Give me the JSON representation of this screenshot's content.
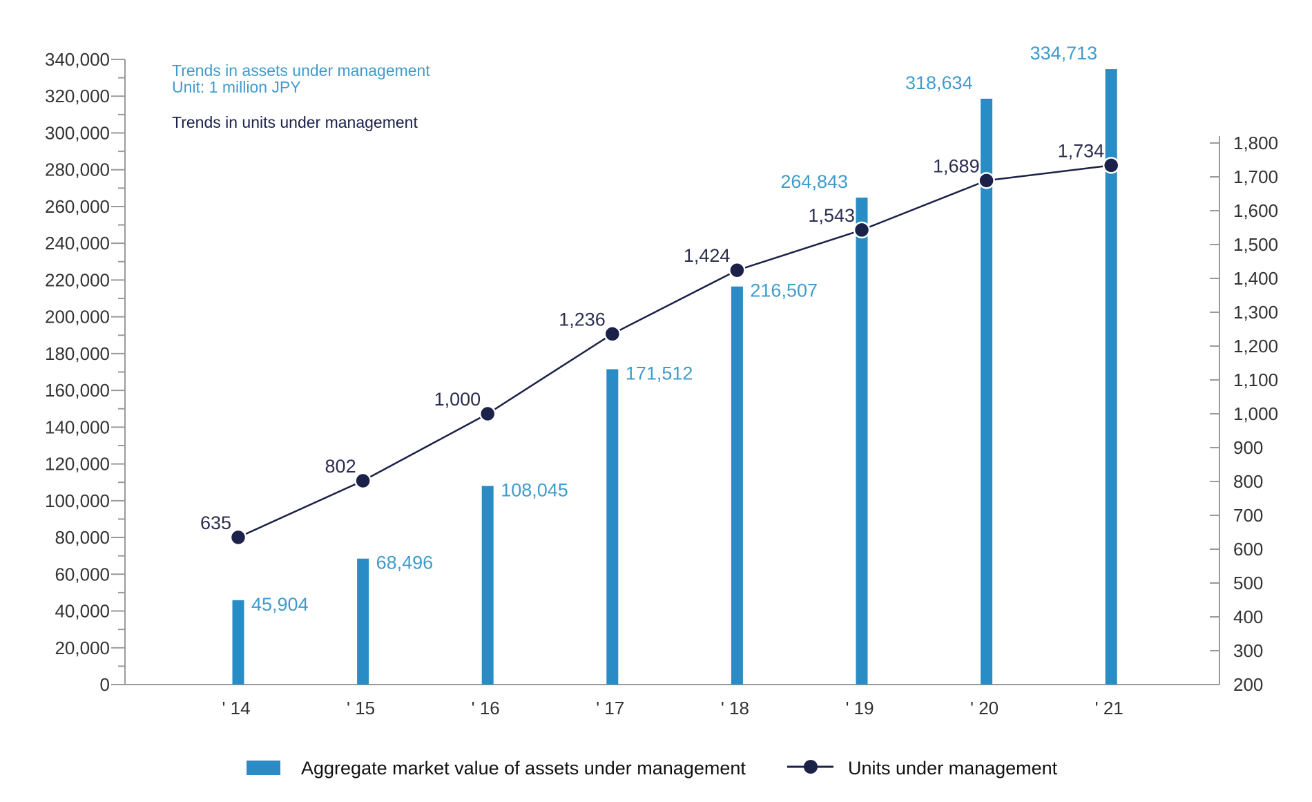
{
  "colors": {
    "bar": "#2a8cc4",
    "line": "#1b2148",
    "axis": "#9a9a9a",
    "bar_label": "#3f9bcc",
    "line_label": "#2b2d4e"
  },
  "notes": {
    "assets_title": "Trends in assets under management",
    "assets_unit": "Unit: 1 million JPY",
    "units_title": "Trends in units under management"
  },
  "chart_data": {
    "type": "bar",
    "categories": [
      "' 14",
      "' 15",
      "' 16",
      "' 17",
      "' 18",
      "' 19",
      "' 20",
      "' 21"
    ],
    "series": [
      {
        "name": "Aggregate market value of assets under management",
        "type": "bar",
        "axis": "left",
        "values": [
          45904,
          68496,
          108045,
          171512,
          216507,
          264843,
          318634,
          334713
        ],
        "labels": [
          "45,904",
          "68,496",
          "108,045",
          "171,512",
          "216,507",
          "264,843",
          "318,634",
          "334,713"
        ]
      },
      {
        "name": "Units under management",
        "type": "line",
        "axis": "right",
        "values": [
          635,
          802,
          1000,
          1236,
          1424,
          1543,
          1689,
          1734
        ],
        "labels": [
          "635",
          "802",
          "1,000",
          "1,236",
          "1,424",
          "1,543",
          "1,689",
          "1,734"
        ]
      }
    ],
    "y_left": {
      "range": [
        0,
        340000
      ],
      "ticks": [
        "0",
        "20,000",
        "40,000",
        "60,000",
        "80,000",
        "100,000",
        "120,000",
        "140,000",
        "160,000",
        "180,000",
        "200,000",
        "220,000",
        "240,000",
        "260,000",
        "280,000",
        "300,000",
        "320,000",
        "340,000"
      ]
    },
    "y_right": {
      "range": [
        200,
        1800
      ],
      "ticks": [
        "200",
        "300",
        "400",
        "500",
        "600",
        "700",
        "800",
        "900",
        "1,000",
        "1,100",
        "1,200",
        "1,300",
        "1,400",
        "1,500",
        "1,600",
        "1,700",
        "1,800"
      ]
    },
    "legend": "bottom-center"
  }
}
